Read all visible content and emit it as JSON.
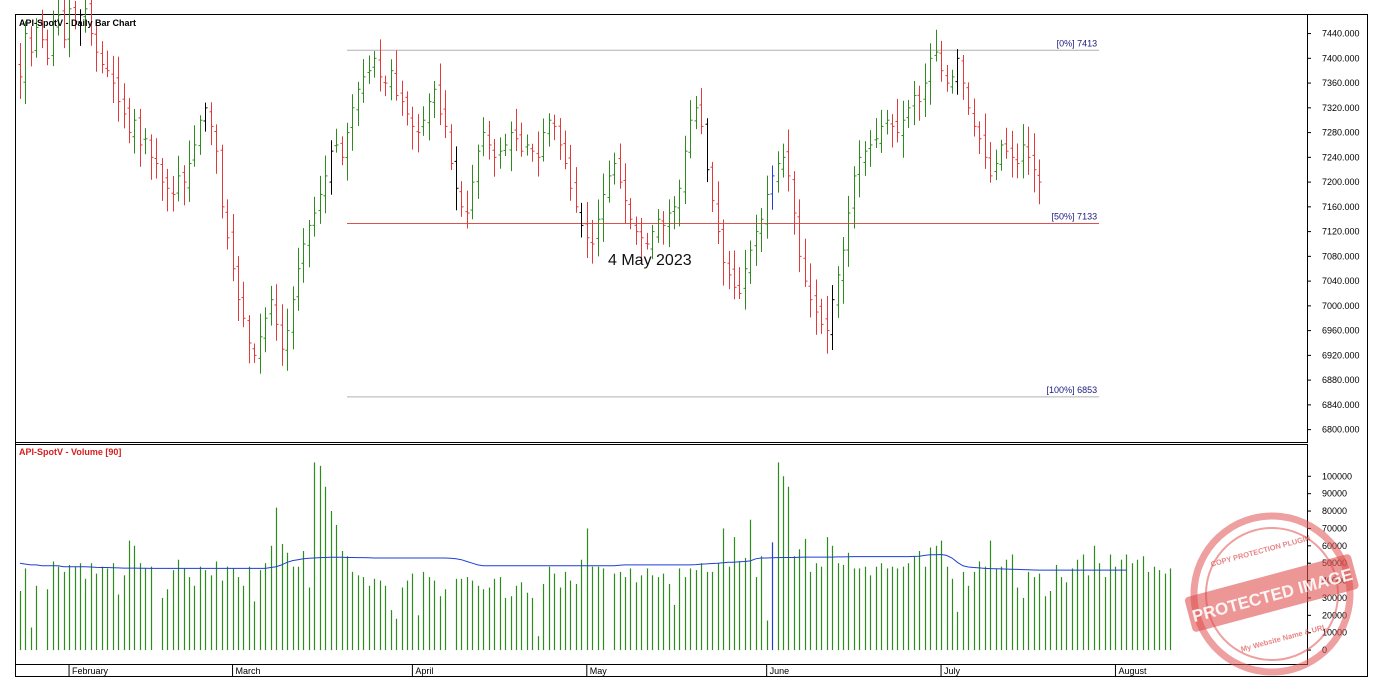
{
  "chart_data": [
    {
      "type": "bar",
      "subtype": "ohlc",
      "title": "API-SpotV - Daily Bar Chart",
      "ylim": [
        6780,
        7470
      ],
      "y_ticks": [
        "7440.000",
        "7400.000",
        "7360.000",
        "7320.000",
        "7280.000",
        "7240.000",
        "7200.000",
        "7160.000",
        "7120.000",
        "7080.000",
        "7040.000",
        "7000.000",
        "6960.000",
        "6920.000",
        "6880.000",
        "6840.000",
        "6800.000"
      ],
      "months": [
        {
          "label": "February",
          "bar_index": 9
        },
        {
          "label": "March",
          "bar_index": 39
        },
        {
          "label": "April",
          "bar_index": 72
        },
        {
          "label": "May",
          "bar_index": 104
        },
        {
          "label": "June",
          "bar_index": 137
        },
        {
          "label": "July",
          "bar_index": 169
        },
        {
          "label": "August",
          "bar_index": 201
        }
      ],
      "annotation": "4 May 2023",
      "fib_levels": [
        {
          "label": "[0%] 7413",
          "value": 7413,
          "color": "#b0b0b0"
        },
        {
          "label": "[50%] 7133",
          "value": 7133,
          "color": "#d9534f"
        },
        {
          "label": "[100%] 6853",
          "value": 6853,
          "color": "#b0b0b0"
        }
      ],
      "fib_start_index": 60,
      "fib_end_index": 198,
      "colors": {
        "up": "#2e8b1e",
        "down": "#e03a3a",
        "neutral": "#000000",
        "special": "#1f3fd6"
      },
      "closes": [
        7370,
        7440,
        7410,
        7450,
        7430,
        7400,
        7460,
        7470,
        7430,
        7480,
        7460,
        7470,
        7480,
        7440,
        7410,
        7390,
        7380,
        7360,
        7330,
        7310,
        7280,
        7300,
        7260,
        7270,
        7240,
        7230,
        7200,
        7190,
        7180,
        7210,
        7200,
        7230,
        7260,
        7300,
        7320,
        7290,
        7250,
        7160,
        7110,
        7060,
        7010,
        6980,
        6940,
        6920,
        6950,
        6980,
        7010,
        6970,
        6930,
        6960,
        7010,
        7060,
        7100,
        7130,
        7150,
        7180,
        7210,
        7250,
        7260,
        7240,
        7280,
        7320,
        7350,
        7370,
        7380,
        7400,
        7370,
        7360,
        7380,
        7340,
        7330,
        7310,
        7290,
        7280,
        7300,
        7330,
        7350,
        7310,
        7290,
        7230,
        7190,
        7160,
        7150,
        7200,
        7250,
        7280,
        7260,
        7240,
        7250,
        7260,
        7280,
        7270,
        7250,
        7260,
        7250,
        7240,
        7280,
        7300,
        7290,
        7260,
        7230,
        7190,
        7160,
        7130,
        7110,
        7100,
        7140,
        7180,
        7210,
        7230,
        7200,
        7170,
        7140,
        7120,
        7110,
        7100,
        7120,
        7140,
        7130,
        7150,
        7160,
        7190,
        7250,
        7300,
        7320,
        7290,
        7220,
        7170,
        7120,
        7070,
        7050,
        7030,
        7020,
        7060,
        7090,
        7120,
        7140,
        7180,
        7210,
        7230,
        7240,
        7210,
        7150,
        7080,
        7040,
        7010,
        6990,
        6970,
        6960,
        7010,
        7050,
        7090,
        7150,
        7210,
        7240,
        7250,
        7260,
        7270,
        7290,
        7300,
        7290,
        7280,
        7300,
        7320,
        7340,
        7330,
        7360,
        7400,
        7410,
        7380,
        7360,
        7370,
        7400,
        7360,
        7320,
        7290,
        7270,
        7240,
        7210,
        7230,
        7260,
        7250,
        7240,
        7230,
        7260,
        7240,
        7220,
        7200
      ],
      "bars_in_gap_indices": "volume_only"
    },
    {
      "type": "bar",
      "title": "API-SpotV - Volume [90]",
      "ylim": [
        -8000,
        118000
      ],
      "y_ticks": [
        "100000",
        "90000",
        "80000",
        "70000",
        "60000",
        "50000",
        "40000",
        "30000",
        "20000",
        "10000",
        "0"
      ],
      "bar_color": "#2e8b1e",
      "special_bar_color": "#1f3fd6",
      "ma_color": "#1f3fd6",
      "volumes": [
        34000,
        47000,
        13000,
        37000,
        0,
        35000,
        51000,
        48000,
        45000,
        49000,
        48000,
        50000,
        41000,
        50000,
        44000,
        48000,
        47000,
        50000,
        32000,
        43000,
        63000,
        60000,
        50000,
        47000,
        48000,
        0,
        30000,
        35000,
        46000,
        52000,
        47000,
        42000,
        37000,
        48000,
        46000,
        43000,
        51000,
        40000,
        48000,
        47000,
        42000,
        37000,
        48000,
        28000,
        46000,
        50000,
        60000,
        82000,
        61000,
        56000,
        48000,
        48000,
        57000,
        36000,
        108000,
        106000,
        94000,
        80000,
        72000,
        57000,
        54000,
        45000,
        43000,
        42000,
        37000,
        41000,
        40000,
        37000,
        23000,
        18000,
        36000,
        40000,
        44000,
        20000,
        45000,
        42000,
        40000,
        31000,
        35000,
        0,
        41000,
        41000,
        42000,
        40000,
        37000,
        35000,
        36000,
        41000,
        42000,
        30000,
        31000,
        37000,
        39000,
        33000,
        30000,
        8000,
        38000,
        48000,
        44000,
        36000,
        45000,
        40000,
        38000,
        52000,
        70000,
        48000,
        48000,
        47000,
        0,
        44000,
        45000,
        42000,
        47000,
        39000,
        43000,
        47000,
        43000,
        42000,
        44000,
        38000,
        26000,
        47000,
        42000,
        47000,
        46000,
        50000,
        45000,
        45000,
        50000,
        70000,
        48000,
        65000,
        51000,
        53000,
        75000,
        42000,
        54000,
        17000,
        62000,
        108000,
        100000,
        94000,
        54000,
        58000,
        64000,
        45000,
        50000,
        48000,
        65000,
        60000,
        50000,
        49000,
        56000,
        47000,
        47000,
        48000,
        43000,
        48000,
        50000,
        47000,
        48000,
        47000,
        48000,
        50000,
        54000,
        57000,
        48000,
        59000,
        60000,
        63000,
        48000,
        41000,
        22000,
        45000,
        37000,
        45000,
        51000,
        48000,
        63000,
        47000,
        48000,
        52000,
        55000,
        36000,
        30000,
        45000,
        42000,
        44000,
        31000,
        34000,
        49000,
        42000,
        39000,
        47000,
        52000,
        55000,
        43000,
        60000,
        50000,
        42000,
        55000,
        48000,
        52000,
        55000,
        50000,
        52000,
        54000,
        45000,
        48000,
        46000,
        44000,
        47000
      ],
      "ma_values": [
        50000,
        49500,
        49000,
        49000,
        48500,
        48500,
        48500,
        48500,
        48000,
        48000,
        48000,
        48000,
        48000,
        47800,
        47600,
        47500,
        47500,
        47400,
        47300,
        47200,
        47200,
        47200,
        47100,
        47100,
        47000,
        47000,
        47000,
        47000,
        47000,
        47000,
        47000,
        47000,
        47000,
        47000,
        47000,
        47000,
        47000,
        47000,
        47000,
        47000,
        47000,
        47000,
        47000,
        47000,
        47000,
        47000,
        47500,
        48000,
        49000,
        50500,
        51500,
        52000,
        52500,
        52800,
        53000,
        53200,
        53300,
        53400,
        53400,
        53400,
        53300,
        53300,
        53200,
        53200,
        53100,
        53000,
        53000,
        53000,
        53000,
        53000,
        53000,
        53000,
        53000,
        53000,
        53000,
        53000,
        53000,
        53000,
        53000,
        52800,
        52500,
        52000,
        51000,
        50000,
        49000,
        48500,
        48500,
        48500,
        48500,
        48500,
        48500,
        48500,
        48500,
        48500,
        48500,
        48500,
        48500,
        48500,
        48500,
        48500,
        48500,
        48500,
        48500,
        48500,
        48500,
        48500,
        48500,
        48500,
        48500,
        48500,
        48800,
        49000,
        49000,
        49000,
        49000,
        49000,
        49000,
        49000,
        49000,
        49000,
        49000,
        49000,
        49000,
        49000,
        49200,
        49500,
        49600,
        49800,
        50000,
        50300,
        50500,
        50500,
        50800,
        51000,
        51300,
        52500,
        53000,
        53000,
        53100,
        53200,
        53300,
        53300,
        53300,
        53400,
        53500,
        53500,
        53500,
        53500,
        53500,
        53500,
        53600,
        53600,
        53700,
        53800,
        53800,
        53800,
        53800,
        53800,
        53800,
        53800,
        53800,
        53800,
        53800,
        53800,
        53900,
        54000,
        54500,
        54800,
        54900,
        55000,
        54500,
        53000,
        50500,
        48500,
        47800,
        47500,
        47300,
        47000,
        46900,
        46800,
        46700,
        46600,
        46500,
        46400,
        46300,
        46200,
        46100,
        46000,
        46000,
        46000,
        46000,
        46000,
        46000,
        46000,
        46000,
        46000,
        46000,
        46000,
        46000,
        46000,
        46000,
        46000,
        46000,
        46000
      ]
    }
  ],
  "stamp": {
    "top_text": "COPY PROTECTION PLUGIN",
    "main_text": "PROTECTED IMAGE",
    "bottom_text": "My Website Name & URL",
    "color": "#e05050"
  }
}
